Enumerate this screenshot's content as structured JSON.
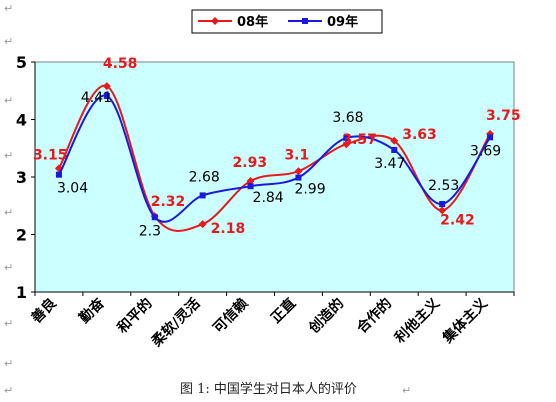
{
  "caption": "图 1:  中国学生对日本人的评价",
  "chart_data": {
    "type": "line",
    "categories": [
      "善良",
      "勤奋",
      "和平的",
      "柔软/灵活",
      "可信赖",
      "正直",
      "创造的",
      "合作的",
      "利他主义",
      "集体主义"
    ],
    "series": [
      {
        "name": "08年",
        "color": "#e8191c",
        "marker": "diamond",
        "values": [
          3.15,
          4.58,
          2.32,
          2.18,
          2.93,
          3.1,
          3.57,
          3.63,
          2.42,
          3.75
        ]
      },
      {
        "name": "09年",
        "color": "#1a1adc",
        "marker": "square",
        "values": [
          3.04,
          4.41,
          2.3,
          2.68,
          2.84,
          2.99,
          3.68,
          3.47,
          2.53,
          3.69
        ]
      }
    ],
    "ylim": [
      1,
      5
    ],
    "yticks": [
      "1",
      "2",
      "3",
      "4",
      "5"
    ],
    "plot_background": "#ccffff",
    "legend": "top-center",
    "smooth": true
  }
}
